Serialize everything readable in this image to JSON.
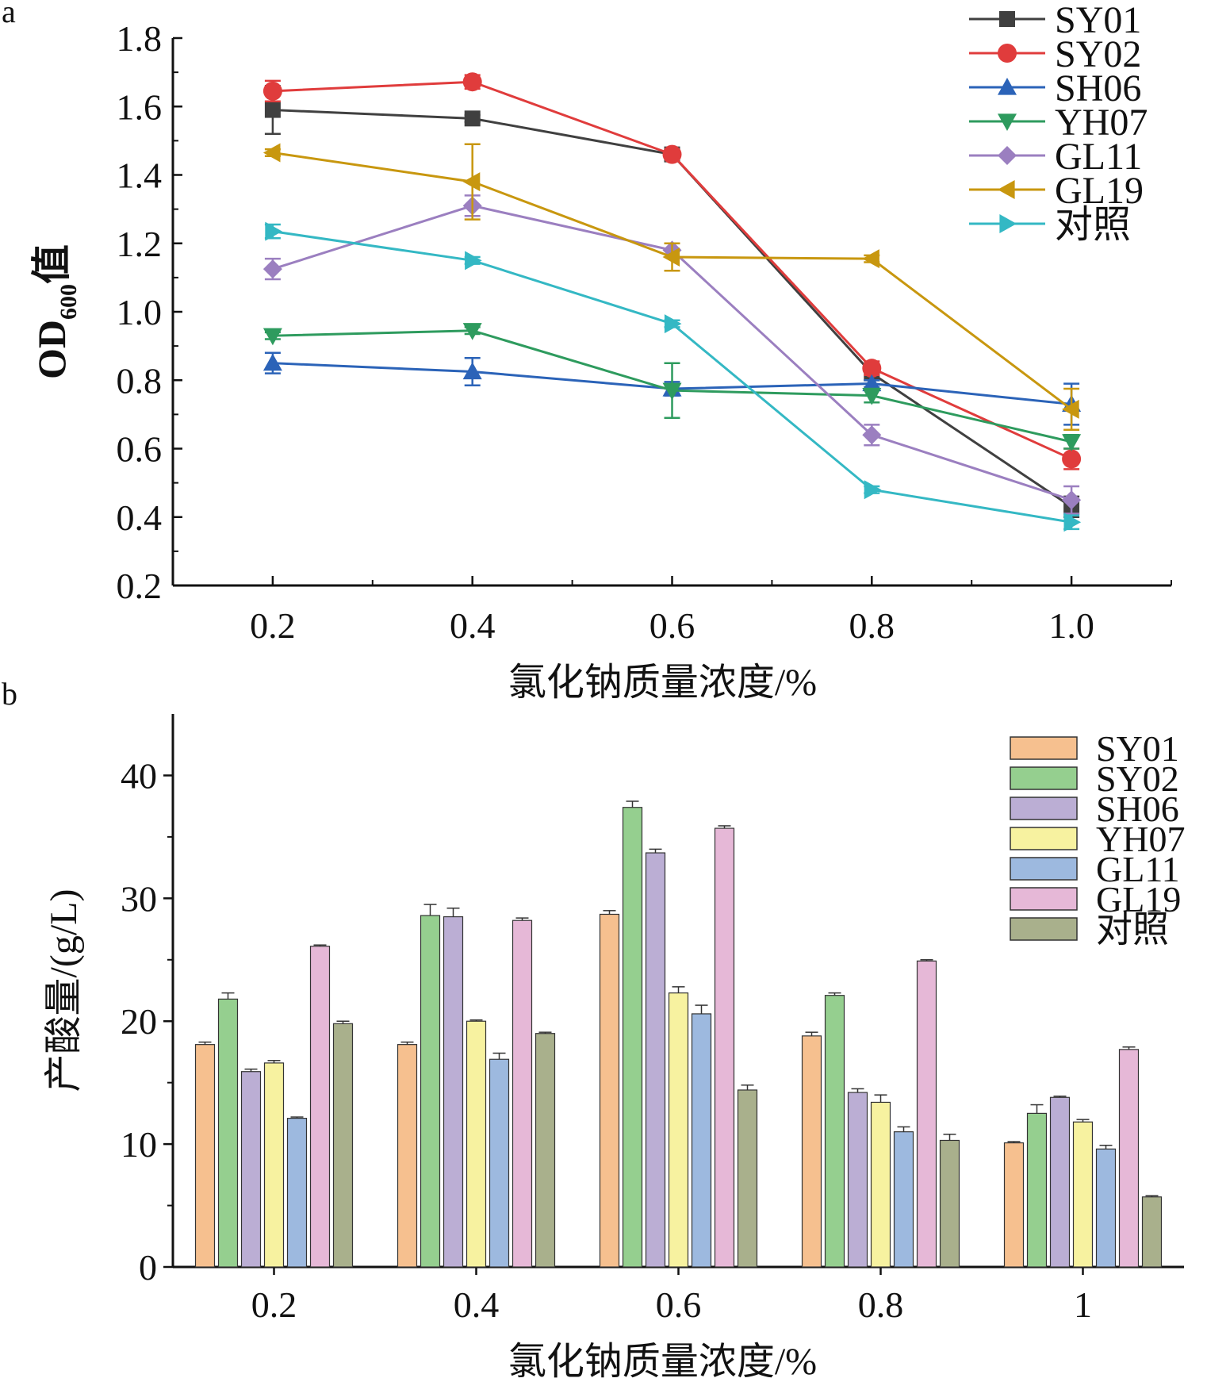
{
  "panel_labels": {
    "a": "a",
    "b": "b"
  },
  "chart_data": [
    {
      "type": "line",
      "panel": "a",
      "title": "",
      "xlabel": "氯化钠质量浓度/%",
      "ylabel_main": "OD",
      "ylabel_sub": "600",
      "ylabel_suffix": "值",
      "x": [
        0.2,
        0.4,
        0.6,
        0.8,
        1.0
      ],
      "xticks": [
        0.2,
        0.4,
        0.6,
        0.8,
        1.0
      ],
      "xtick_labels": [
        "0.2",
        "0.4",
        "0.6",
        "0.8",
        "1.0"
      ],
      "xlim": [
        0.1,
        1.1
      ],
      "ylim": [
        0.2,
        1.8
      ],
      "yticks": [
        0.2,
        0.4,
        0.6,
        0.8,
        1.0,
        1.2,
        1.4,
        1.6,
        1.8
      ],
      "ytick_labels": [
        "0.2",
        "0.4",
        "0.6",
        "0.8",
        "1.0",
        "1.2",
        "1.4",
        "1.6",
        "1.8"
      ],
      "grid": false,
      "legend_position": "top-right",
      "series": [
        {
          "name": "SY01",
          "color": "#404040",
          "marker": "square",
          "values": [
            1.59,
            1.565,
            1.46,
            0.82,
            0.43
          ],
          "errors": [
            0.07,
            0.01,
            0.01,
            0.02,
            0.03
          ]
        },
        {
          "name": "SY02",
          "color": "#e03c3c",
          "marker": "circle",
          "values": [
            1.645,
            1.672,
            1.46,
            0.835,
            0.57
          ],
          "errors": [
            0.03,
            0.02,
            0.01,
            0.02,
            0.03
          ]
        },
        {
          "name": "SH06",
          "color": "#2b63b8",
          "marker": "triangle-up",
          "values": [
            0.85,
            0.825,
            0.775,
            0.79,
            0.73
          ],
          "errors": [
            0.03,
            0.04,
            0.02,
            0.01,
            0.06
          ]
        },
        {
          "name": "YH07",
          "color": "#2e9b5e",
          "marker": "triangle-down",
          "values": [
            0.93,
            0.945,
            0.77,
            0.755,
            0.62
          ],
          "errors": [
            0.01,
            0.01,
            0.08,
            0.02,
            0.02
          ]
        },
        {
          "name": "GL11",
          "color": "#9b7fc0",
          "marker": "diamond",
          "values": [
            1.125,
            1.31,
            1.18,
            0.64,
            0.45
          ],
          "errors": [
            0.03,
            0.03,
            0.02,
            0.03,
            0.04
          ]
        },
        {
          "name": "GL19",
          "color": "#c8970f",
          "marker": "triangle-left",
          "values": [
            1.465,
            1.38,
            1.16,
            1.155,
            0.715
          ],
          "errors": [
            0.01,
            0.11,
            0.04,
            0.01,
            0.06
          ]
        },
        {
          "name": "对照",
          "color": "#34b8c4",
          "marker": "triangle-right",
          "values": [
            1.235,
            1.15,
            0.965,
            0.48,
            0.385
          ],
          "errors": [
            0.02,
            0.01,
            0.01,
            0.01,
            0.02
          ]
        }
      ]
    },
    {
      "type": "bar",
      "panel": "b",
      "title": "",
      "xlabel": "氯化钠质量浓度/%",
      "ylabel": "产酸量/(g/L)",
      "categories": [
        "0.2",
        "0.4",
        "0.6",
        "0.8",
        "1"
      ],
      "ylim": [
        0,
        45
      ],
      "yticks": [
        0,
        10,
        20,
        30,
        40
      ],
      "ytick_labels": [
        "0",
        "10",
        "20",
        "30",
        "40"
      ],
      "grid": false,
      "legend_position": "top-right",
      "series": [
        {
          "name": "SY01",
          "color": "#f6c08f",
          "values": [
            18.1,
            18.1,
            28.7,
            18.8,
            10.1
          ],
          "errors": [
            0.2,
            0.2,
            0.3,
            0.3,
            0.1
          ]
        },
        {
          "name": "SY02",
          "color": "#95cf8f",
          "values": [
            21.8,
            28.6,
            37.4,
            22.1,
            12.5
          ],
          "errors": [
            0.5,
            0.9,
            0.5,
            0.2,
            0.7
          ]
        },
        {
          "name": "SH06",
          "color": "#bbaed4",
          "values": [
            15.9,
            28.5,
            33.7,
            14.2,
            13.8
          ],
          "errors": [
            0.2,
            0.7,
            0.3,
            0.3,
            0.1
          ]
        },
        {
          "name": "YH07",
          "color": "#f7f2a0",
          "values": [
            16.6,
            20.0,
            22.3,
            13.4,
            11.8
          ],
          "errors": [
            0.2,
            0.1,
            0.5,
            0.6,
            0.2
          ]
        },
        {
          "name": "GL11",
          "color": "#9db9df",
          "values": [
            12.1,
            16.9,
            20.6,
            11.0,
            9.6
          ],
          "errors": [
            0.1,
            0.5,
            0.7,
            0.4,
            0.3
          ]
        },
        {
          "name": "GL19",
          "color": "#e6b8d7",
          "values": [
            26.1,
            28.2,
            35.7,
            24.9,
            17.7
          ],
          "errors": [
            0.1,
            0.2,
            0.2,
            0.1,
            0.2
          ]
        },
        {
          "name": "对照",
          "color": "#a9b08c",
          "values": [
            19.8,
            19.0,
            14.4,
            10.3,
            5.7
          ],
          "errors": [
            0.2,
            0.1,
            0.4,
            0.5,
            0.1
          ]
        }
      ]
    }
  ]
}
